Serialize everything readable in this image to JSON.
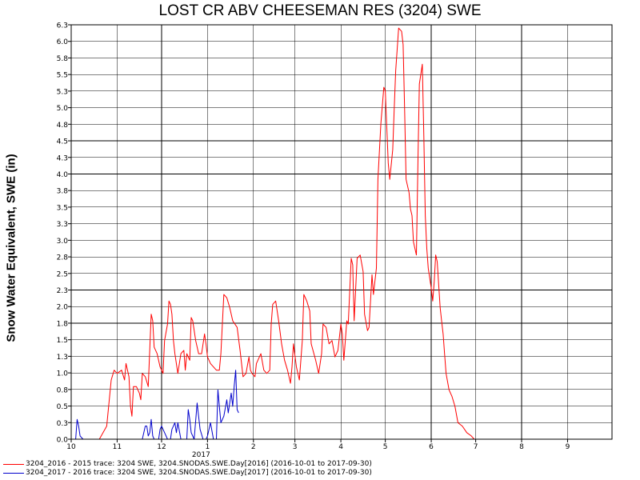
{
  "chart_data": {
    "type": "line",
    "title": "LOST CR ABV CHEESEMAN RES (3204) SWE",
    "xlabel": "",
    "ylabel": "Snow Water Equivalent, SWE (in)",
    "x_ticks": [
      "10",
      "11",
      "12",
      "1",
      "2",
      "3",
      "4",
      "5",
      "6",
      "7",
      "8",
      "9"
    ],
    "x_year_label": "2017",
    "xlim": [
      "2016-10-01",
      "2017-10-01"
    ],
    "ylim": [
      0,
      6.3
    ],
    "y_ticks": [
      "0.0",
      "0.3",
      "0.5",
      "0.8",
      "1.0",
      "1.3",
      "1.5",
      "1.8",
      "2.0",
      "2.3",
      "2.5",
      "2.8",
      "3.0",
      "3.3",
      "3.5",
      "3.8",
      "4.0",
      "4.3",
      "4.5",
      "4.8",
      "5.0",
      "5.3",
      "5.5",
      "5.8",
      "6.0",
      "6.3"
    ],
    "grid": true,
    "series": [
      {
        "name": "3204_2016 - 2015 trace: 3204 SWE, 3204.SNODAS.SWE.Day[2016] (2016-10-01 to 2017-09-30)",
        "color": "#ff0000",
        "points": [
          [
            "2016-10-01",
            0.0
          ],
          [
            "2016-10-20",
            0.0
          ],
          [
            "2016-10-25",
            0.2
          ],
          [
            "2016-10-28",
            0.9
          ],
          [
            "2016-10-30",
            1.05
          ],
          [
            "2016-11-01",
            1.0
          ],
          [
            "2016-11-04",
            1.05
          ],
          [
            "2016-11-06",
            0.9
          ],
          [
            "2016-11-07",
            1.15
          ],
          [
            "2016-11-09",
            0.95
          ],
          [
            "2016-11-10",
            0.5
          ],
          [
            "2016-11-11",
            0.35
          ],
          [
            "2016-11-12",
            0.8
          ],
          [
            "2016-11-14",
            0.8
          ],
          [
            "2016-11-16",
            0.7
          ],
          [
            "2016-11-17",
            0.6
          ],
          [
            "2016-11-18",
            1.0
          ],
          [
            "2016-11-20",
            0.95
          ],
          [
            "2016-11-22",
            0.8
          ],
          [
            "2016-11-24",
            1.9
          ],
          [
            "2016-11-25",
            1.8
          ],
          [
            "2016-11-26",
            1.4
          ],
          [
            "2016-11-28",
            1.3
          ],
          [
            "2016-11-30",
            1.1
          ],
          [
            "2016-12-02",
            1.0
          ],
          [
            "2016-12-03",
            1.5
          ],
          [
            "2016-12-05",
            1.75
          ],
          [
            "2016-12-06",
            2.1
          ],
          [
            "2016-12-07",
            2.05
          ],
          [
            "2016-12-08",
            1.9
          ],
          [
            "2016-12-09",
            1.5
          ],
          [
            "2016-12-10",
            1.3
          ],
          [
            "2016-12-12",
            1.0
          ],
          [
            "2016-12-14",
            1.3
          ],
          [
            "2016-12-16",
            1.35
          ],
          [
            "2016-12-17",
            1.05
          ],
          [
            "2016-12-18",
            1.3
          ],
          [
            "2016-12-20",
            1.2
          ],
          [
            "2016-12-21",
            1.85
          ],
          [
            "2016-12-22",
            1.8
          ],
          [
            "2016-12-24",
            1.5
          ],
          [
            "2016-12-26",
            1.3
          ],
          [
            "2016-12-28",
            1.3
          ],
          [
            "2016-12-30",
            1.6
          ],
          [
            "2016-12-31",
            1.45
          ],
          [
            "2017-01-01",
            1.25
          ],
          [
            "2017-01-03",
            1.15
          ],
          [
            "2017-01-05",
            1.1
          ],
          [
            "2017-01-07",
            1.05
          ],
          [
            "2017-01-09",
            1.05
          ],
          [
            "2017-01-10",
            1.3
          ],
          [
            "2017-01-12",
            2.2
          ],
          [
            "2017-01-14",
            2.15
          ],
          [
            "2017-01-16",
            2.0
          ],
          [
            "2017-01-18",
            1.8
          ],
          [
            "2017-01-21",
            1.7
          ],
          [
            "2017-01-23",
            1.35
          ],
          [
            "2017-01-25",
            0.95
          ],
          [
            "2017-01-27",
            1.0
          ],
          [
            "2017-01-29",
            1.25
          ],
          [
            "2017-01-30",
            1.05
          ],
          [
            "2017-01-31",
            1.0
          ],
          [
            "2017-02-02",
            0.95
          ],
          [
            "2017-02-03",
            1.15
          ],
          [
            "2017-02-06",
            1.3
          ],
          [
            "2017-02-08",
            1.05
          ],
          [
            "2017-02-10",
            1.0
          ],
          [
            "2017-02-12",
            1.05
          ],
          [
            "2017-02-13",
            1.75
          ],
          [
            "2017-02-14",
            2.05
          ],
          [
            "2017-02-16",
            2.1
          ],
          [
            "2017-02-18",
            1.8
          ],
          [
            "2017-02-20",
            1.45
          ],
          [
            "2017-02-22",
            1.2
          ],
          [
            "2017-02-24",
            1.05
          ],
          [
            "2017-02-26",
            0.85
          ],
          [
            "2017-02-27",
            1.1
          ],
          [
            "2017-02-28",
            1.45
          ],
          [
            "2017-03-02",
            1.1
          ],
          [
            "2017-03-04",
            0.9
          ],
          [
            "2017-03-06",
            1.5
          ],
          [
            "2017-03-07",
            2.2
          ],
          [
            "2017-03-09",
            2.1
          ],
          [
            "2017-03-11",
            1.95
          ],
          [
            "2017-03-12",
            1.45
          ],
          [
            "2017-03-15",
            1.2
          ],
          [
            "2017-03-17",
            1.0
          ],
          [
            "2017-03-19",
            1.3
          ],
          [
            "2017-03-20",
            1.75
          ],
          [
            "2017-03-22",
            1.7
          ],
          [
            "2017-03-24",
            1.45
          ],
          [
            "2017-03-26",
            1.5
          ],
          [
            "2017-03-28",
            1.25
          ],
          [
            "2017-03-30",
            1.35
          ],
          [
            "2017-04-01",
            1.75
          ],
          [
            "2017-04-02",
            1.6
          ],
          [
            "2017-04-03",
            1.2
          ],
          [
            "2017-04-05",
            1.8
          ],
          [
            "2017-04-06",
            1.75
          ],
          [
            "2017-04-08",
            2.75
          ],
          [
            "2017-04-09",
            2.65
          ],
          [
            "2017-04-10",
            1.8
          ],
          [
            "2017-04-12",
            2.75
          ],
          [
            "2017-04-14",
            2.8
          ],
          [
            "2017-04-16",
            2.55
          ],
          [
            "2017-04-17",
            1.9
          ],
          [
            "2017-04-19",
            1.65
          ],
          [
            "2017-04-20",
            1.7
          ],
          [
            "2017-04-22",
            2.5
          ],
          [
            "2017-04-23",
            2.2
          ],
          [
            "2017-04-25",
            2.6
          ],
          [
            "2017-04-26",
            3.95
          ],
          [
            "2017-04-28",
            4.8
          ],
          [
            "2017-04-30",
            5.35
          ],
          [
            "2017-05-01",
            5.3
          ],
          [
            "2017-05-03",
            4.2
          ],
          [
            "2017-05-04",
            3.95
          ],
          [
            "2017-05-06",
            4.4
          ],
          [
            "2017-05-07",
            5.0
          ],
          [
            "2017-05-08",
            5.6
          ],
          [
            "2017-05-10",
            6.25
          ],
          [
            "2017-05-12",
            6.2
          ],
          [
            "2017-05-13",
            6.0
          ],
          [
            "2017-05-14",
            5.05
          ],
          [
            "2017-05-15",
            3.95
          ],
          [
            "2017-05-17",
            3.75
          ],
          [
            "2017-05-18",
            3.5
          ],
          [
            "2017-05-19",
            3.4
          ],
          [
            "2017-05-20",
            3.0
          ],
          [
            "2017-05-22",
            2.8
          ],
          [
            "2017-05-23",
            4.2
          ],
          [
            "2017-05-24",
            5.4
          ],
          [
            "2017-05-26",
            5.7
          ],
          [
            "2017-05-27",
            4.6
          ],
          [
            "2017-05-28",
            3.4
          ],
          [
            "2017-05-29",
            2.9
          ],
          [
            "2017-05-30",
            2.6
          ],
          [
            "2017-06-01",
            2.3
          ],
          [
            "2017-06-02",
            2.1
          ],
          [
            "2017-06-03",
            2.4
          ],
          [
            "2017-06-04",
            2.8
          ],
          [
            "2017-06-05",
            2.7
          ],
          [
            "2017-06-07",
            2.0
          ],
          [
            "2017-06-08",
            1.8
          ],
          [
            "2017-06-09",
            1.6
          ],
          [
            "2017-06-10",
            1.3
          ],
          [
            "2017-06-11",
            1.0
          ],
          [
            "2017-06-13",
            0.75
          ],
          [
            "2017-06-15",
            0.65
          ],
          [
            "2017-06-17",
            0.5
          ],
          [
            "2017-06-19",
            0.25
          ],
          [
            "2017-06-22",
            0.2
          ],
          [
            "2017-06-25",
            0.1
          ],
          [
            "2017-06-28",
            0.05
          ],
          [
            "2017-06-30",
            0.0
          ]
        ]
      },
      {
        "name": "3204_2017 - 2016 trace: 3204 SWE, 3204.SNODAS.SWE.Day[2017] (2016-10-01 to 2017-09-30)",
        "color": "#0000cc",
        "points": [
          [
            "2016-10-01",
            0.0
          ],
          [
            "2016-10 04",
            0.0
          ],
          [
            "2016-10-05",
            0.3
          ],
          [
            "2016-10-06",
            0.2
          ],
          [
            "2016-10-07",
            0.05
          ],
          [
            "2016-10-09",
            0.0
          ],
          [
            "2016-10-11",
            0.0
          ],
          [
            "2016-11-18",
            0.0
          ],
          [
            "2016-11-20",
            0.2
          ],
          [
            "2016-11-21",
            0.2
          ],
          [
            "2016-11-22",
            0.05
          ],
          [
            "2016-11-23",
            0.1
          ],
          [
            "2016-11-24",
            0.3
          ],
          [
            "2016-11-25",
            0.05
          ],
          [
            "2016-11-26",
            0.0
          ],
          [
            "2016-11-29",
            0.0
          ],
          [
            "2016-11-30",
            0.15
          ],
          [
            "2016-12-01",
            0.2
          ],
          [
            "2016-12-03",
            0.1
          ],
          [
            "2016-12-05",
            0.0
          ],
          [
            "2016-12-07",
            0.0
          ],
          [
            "2016-12-08",
            0.15
          ],
          [
            "2016-12-10",
            0.25
          ],
          [
            "2016-12-11",
            0.1
          ],
          [
            "2016-12-12",
            0.25
          ],
          [
            "2016-12-14",
            0.0
          ],
          [
            "2016-12-18",
            0.0
          ],
          [
            "2016-12-19",
            0.45
          ],
          [
            "2016-12-20",
            0.3
          ],
          [
            "2016-12-21",
            0.1
          ],
          [
            "2016-12-23",
            0.0
          ],
          [
            "2016-12-25",
            0.55
          ],
          [
            "2016-12-27",
            0.15
          ],
          [
            "2016-12-29",
            0.0
          ],
          [
            "2016-12-31",
            0.0
          ],
          [
            "2017-01-01",
            0.05
          ],
          [
            "2017-01-03",
            0.25
          ],
          [
            "2017-01-05",
            0.0
          ],
          [
            "2017-01-07",
            0.0
          ],
          [
            "2017-01-08",
            0.75
          ],
          [
            "2017-01-09",
            0.5
          ],
          [
            "2017-01-10",
            0.25
          ],
          [
            "2017-01-12",
            0.35
          ],
          [
            "2017-01-14",
            0.6
          ],
          [
            "2017-01-15",
            0.4
          ],
          [
            "2017-01-17",
            0.7
          ],
          [
            "2017-01-18",
            0.5
          ],
          [
            "2017-01-19",
            0.8
          ],
          [
            "2017-01-20",
            1.05
          ],
          [
            "2017-01-21",
            0.45
          ],
          [
            "2017-01-22",
            0.4
          ]
        ]
      }
    ],
    "legend": "bottom-left"
  }
}
